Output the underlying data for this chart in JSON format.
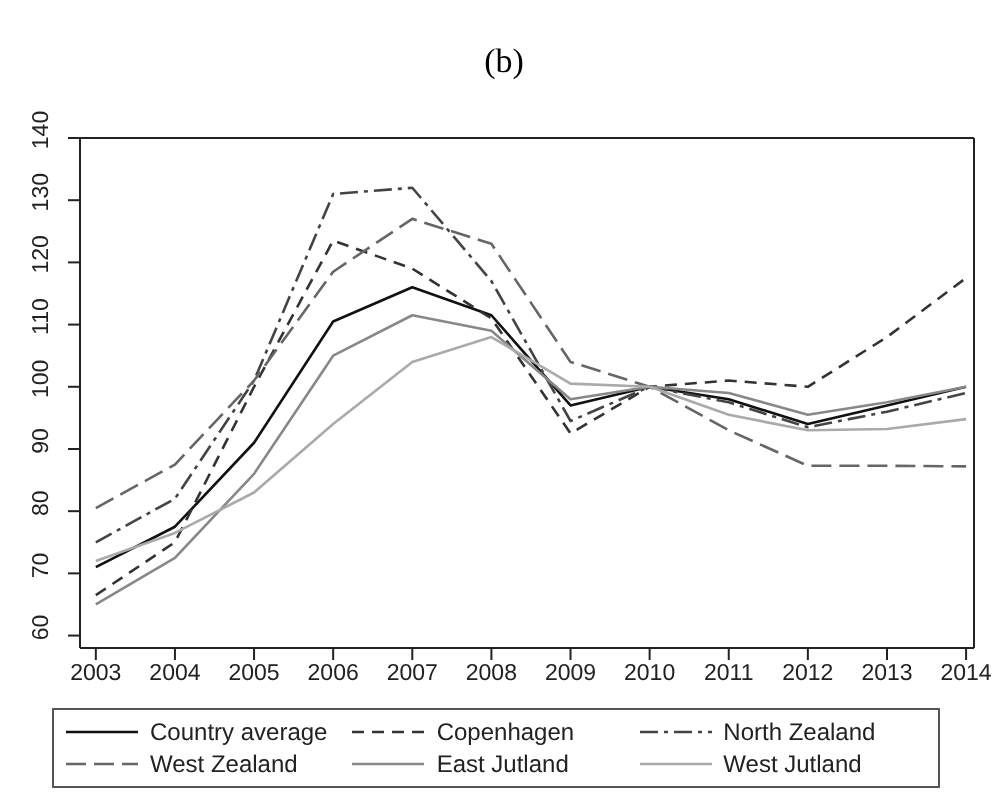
{
  "chart_data": {
    "type": "line",
    "title": "(b)",
    "x": [
      2003,
      2004,
      2005,
      2006,
      2007,
      2008,
      2009,
      2010,
      2011,
      2012,
      2013,
      2014
    ],
    "series": [
      {
        "name": "Country average",
        "color": "#111111",
        "line_style": "solid",
        "values": [
          71,
          77.5,
          91,
          110.5,
          116,
          111.5,
          97,
          100,
          98,
          94,
          97,
          100
        ]
      },
      {
        "name": "Copenhagen",
        "color": "#333333",
        "line_style": "dashed",
        "values": [
          66.5,
          75,
          100,
          123.5,
          119,
          111,
          92.5,
          100,
          101,
          100,
          108,
          117.5
        ]
      },
      {
        "name": "North Zealand",
        "color": "#444444",
        "line_style": "dashdot",
        "values": [
          75,
          82,
          101,
          131,
          132,
          117,
          94.5,
          100,
          97.5,
          93.5,
          96,
          99
        ]
      },
      {
        "name": "West Zealand",
        "color": "#666666",
        "line_style": "longdash",
        "values": [
          80.5,
          87.5,
          101,
          118.5,
          127,
          123,
          104,
          100,
          93,
          87.3,
          87.3,
          87.2
        ]
      },
      {
        "name": "East Jutland",
        "color": "#888888",
        "line_style": "solid",
        "values": [
          65,
          72.5,
          86,
          105,
          111.5,
          109,
          98,
          100,
          99,
          95.5,
          97.5,
          100
        ]
      },
      {
        "name": "West Jutland",
        "color": "#aaaaaa",
        "line_style": "solid",
        "values": [
          72,
          76.5,
          83,
          94,
          104,
          108,
          100.5,
          100,
          95.5,
          93,
          93.2,
          94.8
        ]
      }
    ],
    "xlim": [
      2002.8,
      2014.1
    ],
    "xticks": [
      2003,
      2004,
      2005,
      2006,
      2007,
      2008,
      2009,
      2010,
      2011,
      2012,
      2013,
      2014
    ],
    "ylim": [
      58,
      140
    ],
    "yticks": [
      60,
      70,
      80,
      90,
      100,
      110,
      120,
      130,
      140
    ],
    "legend": "bottom",
    "marker": "none"
  }
}
